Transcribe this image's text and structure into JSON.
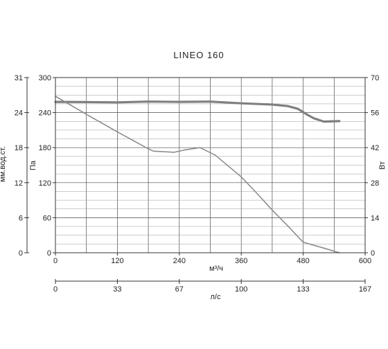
{
  "chart_data": {
    "type": "line",
    "title": "LINEO 160",
    "x": {
      "label": "м³/ч",
      "range": [
        0,
        600
      ],
      "ticks": [
        "0",
        "120",
        "240",
        "360",
        "480",
        "600"
      ]
    },
    "x_secondary": {
      "label": "л/с",
      "range": [
        0,
        167
      ],
      "ticks": [
        "0",
        "33",
        "67",
        "100",
        "133",
        "167"
      ]
    },
    "y": {
      "label": "Па",
      "range": [
        0,
        300
      ],
      "ticks": [
        "0",
        "60",
        "120",
        "180",
        "240",
        "300"
      ]
    },
    "y_left_outer": {
      "label": "мм.вод.ст.",
      "ticks": [
        "0",
        "6",
        "12",
        "18",
        "24",
        "31"
      ]
    },
    "y_right": {
      "label": "Вт",
      "range": [
        0,
        70
      ],
      "ticks": [
        "0",
        "14",
        "28",
        "42",
        "56",
        "70"
      ]
    },
    "grid": true,
    "series": [
      {
        "role": "power",
        "axis": "y_right",
        "color": "#7f7f7f",
        "x": [
          0,
          60,
          120,
          180,
          240,
          300,
          360,
          420,
          450,
          470,
          485,
          500,
          520,
          550
        ],
        "y": [
          60.3,
          60.2,
          60.1,
          60.4,
          60.3,
          60.4,
          59.7,
          59.2,
          58.6,
          57.5,
          55.5,
          53.8,
          52.4,
          52.6
        ]
      },
      {
        "role": "pressure",
        "axis": "y",
        "color": "#8c8c8c",
        "x": [
          0,
          60,
          120,
          180,
          190,
          210,
          230,
          250,
          280,
          310,
          330,
          360,
          390,
          420,
          450,
          480,
          520,
          550
        ],
        "y": [
          268,
          237,
          207,
          178,
          174,
          173,
          172,
          176,
          180,
          167,
          152,
          130,
          102,
          73,
          46,
          18,
          8,
          0
        ]
      }
    ]
  }
}
